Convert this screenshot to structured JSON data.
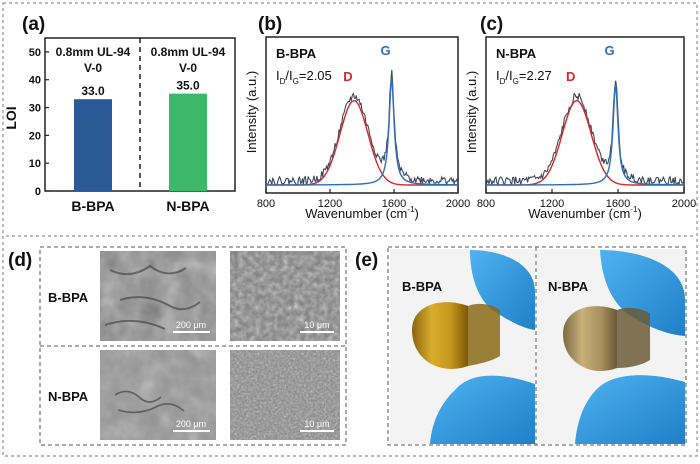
{
  "panel_labels": {
    "a": "(a)",
    "b": "(b)",
    "c": "(c)",
    "d": "(d)",
    "e": "(e)"
  },
  "chart_data": [
    {
      "type": "bar",
      "title": "",
      "ylabel": "LOI",
      "categories": [
        "B-BPA",
        "N-BPA"
      ],
      "values": [
        33.0,
        35.0
      ],
      "value_labels": [
        "33.0",
        "35.0"
      ],
      "ylim": [
        0,
        55
      ],
      "yticks": [
        0,
        10,
        20,
        30,
        40,
        50
      ],
      "annotations": [
        {
          "line1": "0.8mm UL-94",
          "line2": "V-0"
        },
        {
          "line1": "0.8mm UL-94",
          "line2": "V-0"
        }
      ],
      "colors": [
        "#2a5b96",
        "#3db86a"
      ]
    },
    {
      "type": "line",
      "sample": "B-BPA",
      "ratio_label": "I",
      "ratio_sub_d": "D",
      "ratio_slash": "/I",
      "ratio_sub_g": "G",
      "ratio_value": "=2.05",
      "xlabel": "Wavenumber (cm",
      "xlabel_sup": "-1",
      "xlabel_end": ")",
      "ylabel": "Intensity (a.u.)",
      "xlim": [
        800,
        2000
      ],
      "xticks": [
        800,
        1200,
        1600,
        2000
      ],
      "peak_labels": [
        {
          "text": "D",
          "x": 1350
        },
        {
          "text": "G",
          "x": 1585
        }
      ],
      "peaks": {
        "D": {
          "center": 1350,
          "height": 0.62,
          "width": 140
        },
        "G": {
          "center": 1585,
          "height": 0.78,
          "width": 38
        }
      },
      "colors": {
        "D": "#d62828",
        "G": "#2e6fb7",
        "raw": "#3a4a5a"
      }
    },
    {
      "type": "line",
      "sample": "N-BPA",
      "ratio_label": "I",
      "ratio_sub_d": "D",
      "ratio_slash": "/I",
      "ratio_sub_g": "G",
      "ratio_value": "=2.27",
      "xlabel": "Wavenumber (cm",
      "xlabel_sup": "-1",
      "xlabel_end": ")",
      "ylabel": "Intensity (a.u.)",
      "xlim": [
        800,
        2000
      ],
      "xticks": [
        800,
        1200,
        1600,
        2000
      ],
      "peak_labels": [
        {
          "text": "D",
          "x": 1350
        },
        {
          "text": "G",
          "x": 1585
        }
      ],
      "peaks": {
        "D": {
          "center": 1350,
          "height": 0.62,
          "width": 140
        },
        "G": {
          "center": 1585,
          "height": 0.74,
          "width": 36
        }
      },
      "colors": {
        "D": "#d62828",
        "G": "#2e6fb7",
        "raw": "#3a4a5a"
      }
    }
  ],
  "sem": {
    "rows": [
      "B-BPA",
      "N-BPA"
    ],
    "scale_low": "200 μm",
    "scale_high": "10 μm"
  },
  "photos": {
    "labels": [
      "B-BPA",
      "N-BPA"
    ],
    "film_colors": [
      "#c89a1e",
      "#b59a62"
    ]
  }
}
